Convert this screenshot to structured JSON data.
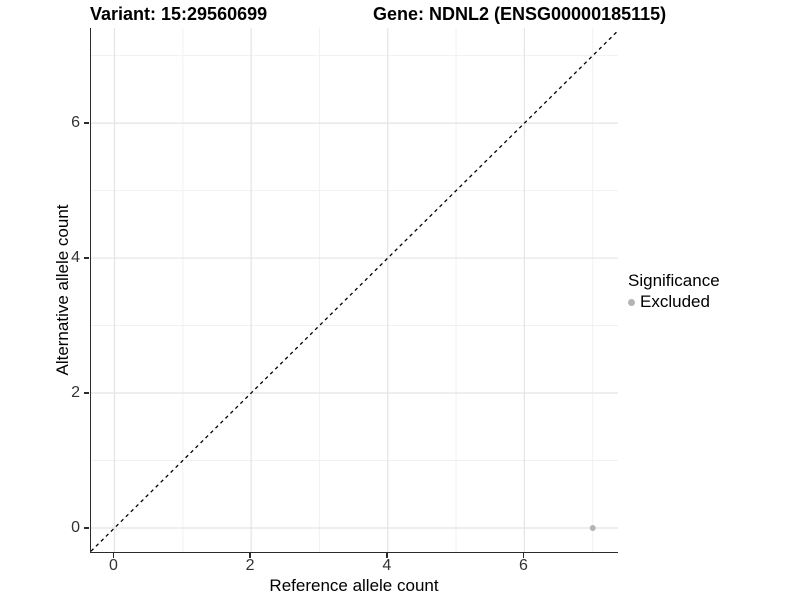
{
  "titles": {
    "left": "Variant: 15:29560699",
    "right": "Gene: NDNL2 (ENSG00000185115)"
  },
  "legend": {
    "title": "Significance",
    "items": [
      {
        "label": "Excluded",
        "color": "#b4b4b4"
      }
    ]
  },
  "chart_data": {
    "type": "scatter",
    "title": "Variant: 15:29560699 / Gene: NDNL2 (ENSG00000185115)",
    "xlabel": "Reference allele count",
    "ylabel": "Alternative allele count",
    "xlim": [
      -0.344,
      7.37
    ],
    "ylim": [
      -0.356,
      7.41
    ],
    "x_major_ticks": [
      0,
      2,
      4,
      6
    ],
    "y_major_ticks": [
      0,
      2,
      4,
      6
    ],
    "x_minor_gridlines": [
      1,
      3,
      5,
      7
    ],
    "y_minor_gridlines": [
      1,
      3,
      5,
      7
    ],
    "grid": true,
    "legend_position": "right",
    "colors": {
      "major_grid": "#e4e4e4",
      "minor_grid": "#f1f1f1",
      "axis_line": "#2b2b2b",
      "reference_line": "#000000"
    },
    "reference_line": {
      "slope": 1,
      "intercept": 0,
      "style": "dashed"
    },
    "series": [
      {
        "name": "Excluded",
        "color": "#b4b4b4",
        "point_radius": 3,
        "points": [
          {
            "x": 7,
            "y": 0
          }
        ]
      }
    ]
  }
}
